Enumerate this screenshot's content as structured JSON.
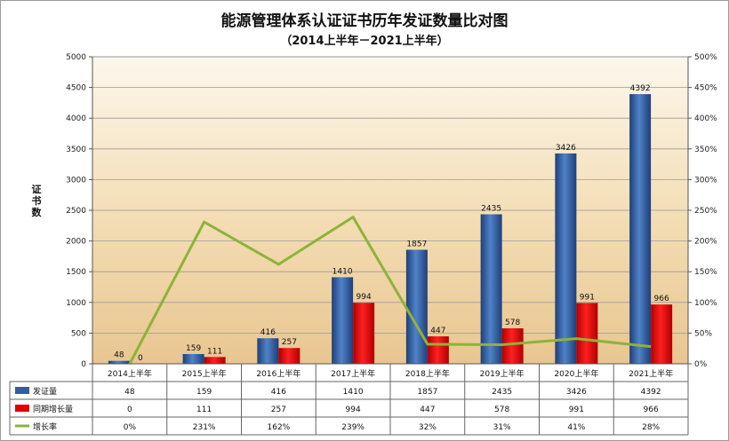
{
  "chart_data": {
    "type": "bar",
    "title": "能源管理体系认证证书历年发证数量比对图",
    "subtitle": "（2014上半年－2021上半年）",
    "ylabel": "证书数",
    "categories": [
      "2014上半年",
      "2015上半年",
      "2016上半年",
      "2017上半年",
      "2018上半年",
      "2019上半年",
      "2020上半年",
      "2021上半年"
    ],
    "series": [
      {
        "name": "发证量",
        "type": "bar",
        "axis": "left",
        "color": "#2f5fa5",
        "values": [
          48,
          159,
          416,
          1410,
          1857,
          2435,
          3426,
          4392
        ]
      },
      {
        "name": "同期增长量",
        "type": "bar",
        "axis": "left",
        "color": "#e00000",
        "values": [
          0,
          111,
          257,
          994,
          447,
          578,
          991,
          966
        ]
      },
      {
        "name": "增长率",
        "type": "line",
        "axis": "right",
        "color": "#8db33a",
        "values": [
          0,
          231,
          162,
          239,
          32,
          31,
          41,
          28
        ]
      }
    ],
    "table_values": {
      "发证量": [
        "48",
        "159",
        "416",
        "1410",
        "1857",
        "2435",
        "3426",
        "4392"
      ],
      "同期增长量": [
        "0",
        "111",
        "257",
        "994",
        "447",
        "578",
        "991",
        "966"
      ],
      "增长率": [
        "0%",
        "231%",
        "162%",
        "239%",
        "32%",
        "31%",
        "41%",
        "28%"
      ]
    },
    "bar_labels": {
      "发证量": [
        "48",
        "159",
        "416",
        "1410",
        "1857",
        "2435",
        "3426",
        "4392"
      ],
      "同期增长量": [
        "0",
        "111",
        "257",
        "994",
        "447",
        "578",
        "991",
        "966"
      ]
    },
    "ylim_left": [
      0,
      5000
    ],
    "yticks_left": [
      "0",
      "500",
      "1000",
      "1500",
      "2000",
      "2500",
      "3000",
      "3500",
      "4000",
      "4500",
      "5000"
    ],
    "ylim_right": [
      0,
      500
    ],
    "yticks_right": [
      "0%",
      "50%",
      "100%",
      "150%",
      "200%",
      "250%",
      "300%",
      "350%",
      "400%",
      "450%",
      "500%"
    ],
    "grid": true,
    "legend": "data-table"
  }
}
